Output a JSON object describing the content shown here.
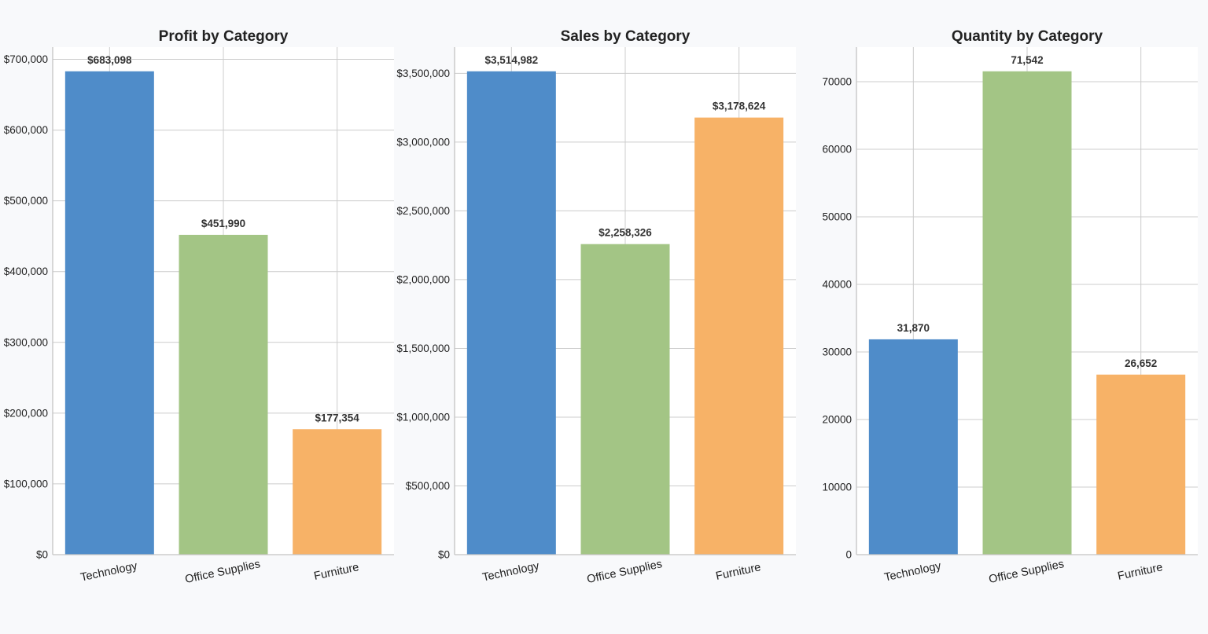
{
  "colors": {
    "background": "#f8f9fb",
    "plot_background": "#ffffff",
    "grid": "#cccccc",
    "axis": "#c4c4c4",
    "bars": [
      "#4f8cc9",
      "#a3c585",
      "#f7b267"
    ]
  },
  "chart_data": [
    {
      "type": "bar",
      "name": "profit-chart",
      "title": "Profit by Category",
      "xlabel": "",
      "ylabel": "",
      "categories": [
        "Technology",
        "Office Supplies",
        "Furniture"
      ],
      "values": [
        683098,
        451990,
        177354
      ],
      "value_labels": [
        "$683,098",
        "$451,990",
        "$177,354"
      ],
      "ylim": [
        0,
        717253
      ],
      "yticks": [
        0,
        100000,
        200000,
        300000,
        400000,
        500000,
        600000,
        700000
      ],
      "ytick_labels": [
        "$0",
        "$100,000",
        "$200,000",
        "$300,000",
        "$400,000",
        "$500,000",
        "$600,000",
        "$700,000"
      ],
      "grid": true,
      "legend": "none"
    },
    {
      "type": "bar",
      "name": "sales-chart",
      "title": "Sales by Category",
      "xlabel": "",
      "ylabel": "",
      "categories": [
        "Technology",
        "Office Supplies",
        "Furniture"
      ],
      "values": [
        3514982,
        2258326,
        3178624
      ],
      "value_labels": [
        "$3,514,982",
        "$2,258,326",
        "$3,178,624"
      ],
      "ylim": [
        0,
        3690731
      ],
      "yticks": [
        0,
        500000,
        1000000,
        1500000,
        2000000,
        2500000,
        3000000,
        3500000
      ],
      "ytick_labels": [
        "$0",
        "$500,000",
        "$1,000,000",
        "$1,500,000",
        "$2,000,000",
        "$2,500,000",
        "$3,000,000",
        "$3,500,000"
      ],
      "grid": true,
      "legend": "none"
    },
    {
      "type": "bar",
      "name": "quantity-chart",
      "title": "Quantity by Category",
      "xlabel": "",
      "ylabel": "",
      "categories": [
        "Technology",
        "Office Supplies",
        "Furniture"
      ],
      "values": [
        31870,
        71542,
        26652
      ],
      "value_labels": [
        "31,870",
        "71,542",
        "26,652"
      ],
      "ylim": [
        0,
        75119
      ],
      "yticks": [
        0,
        10000,
        20000,
        30000,
        40000,
        50000,
        60000,
        70000
      ],
      "ytick_labels": [
        "0",
        "10000",
        "20000",
        "30000",
        "40000",
        "50000",
        "60000",
        "70000"
      ],
      "grid": true,
      "legend": "none"
    }
  ]
}
